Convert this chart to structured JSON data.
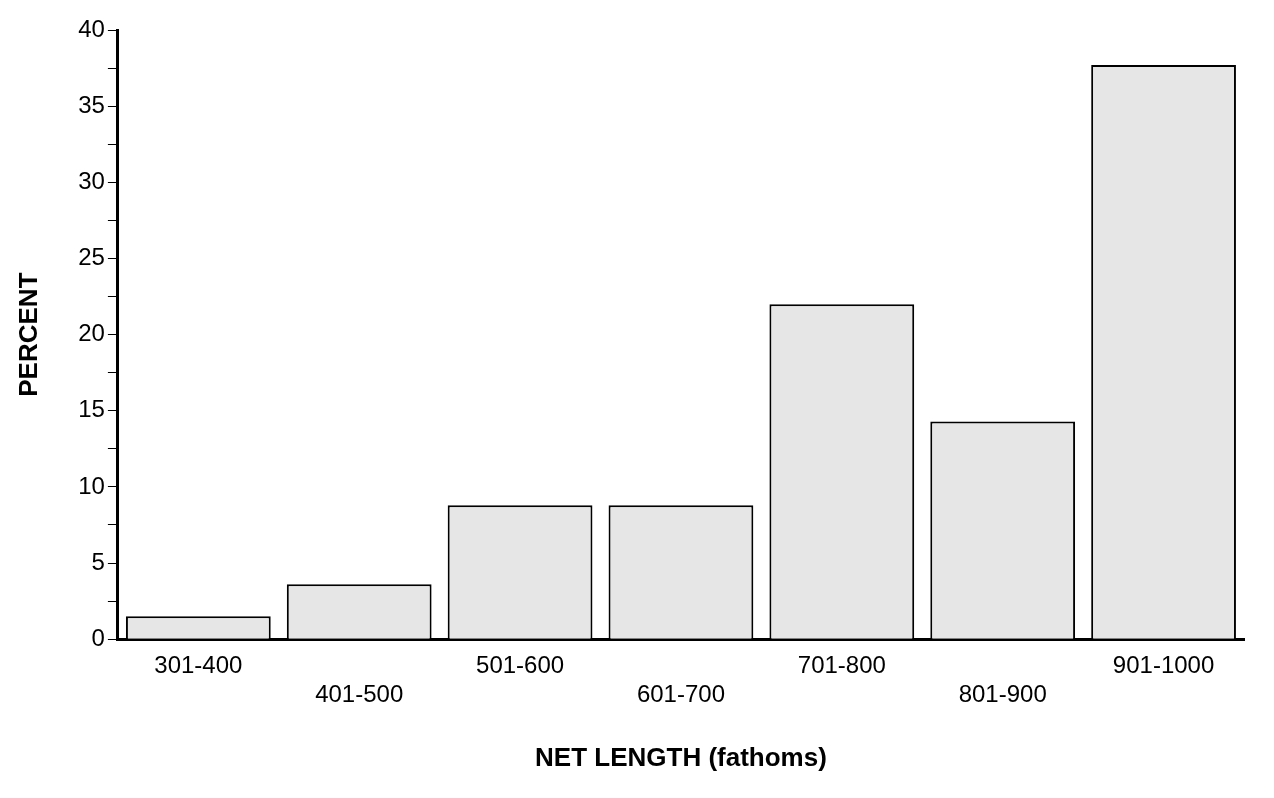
{
  "chart_data": {
    "type": "bar",
    "xlabel": "NET LENGTH (fathoms)",
    "ylabel": "PERCENT",
    "categories": [
      "301-400",
      "401-500",
      "501-600",
      "601-700",
      "701-800",
      "801-900",
      "901-1000"
    ],
    "values": [
      1.5,
      3.6,
      8.8,
      8.8,
      22.0,
      14.3,
      37.7
    ],
    "color": "#e6e6e6",
    "ylim": [
      0,
      40
    ],
    "yticks": [
      0,
      {
        "value": 2.5,
        "label": null
      },
      5,
      {
        "value": 7.5,
        "label": null
      },
      10,
      {
        "value": 12.5,
        "label": null
      },
      15,
      {
        "value": 17.5,
        "label": null
      },
      20,
      {
        "value": 22.5,
        "label": null
      },
      25,
      {
        "value": 27.5,
        "label": null
      },
      30,
      {
        "value": 32.5,
        "label": null
      },
      35,
      {
        "value": 37.5,
        "label": null
      },
      40
    ],
    "grid": false
  }
}
